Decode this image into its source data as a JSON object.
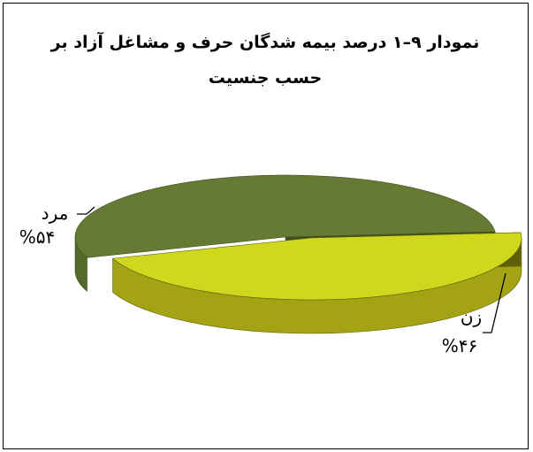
{
  "chart_data": {
    "type": "pie",
    "title": "نمودار ۹–۱ درصد بیمه شدگان حرف و مشاغل آزاد بر حسب جنسیت",
    "title_lines": [
      "نمودار ۹–۱ درصد بیمه شدگان حرف و مشاغل آزاد بر",
      "حسب جنسیت"
    ],
    "slices": [
      {
        "category": "مرد",
        "value": 54,
        "value_label": "%۵۴",
        "color": "#667a33",
        "side_color": "#55692a",
        "dark_color": "#3f5020"
      },
      {
        "category": "زن",
        "value": 46,
        "value_label": "%۴۶",
        "color": "#d0d81e",
        "side_color": "#a3a314",
        "dark_color": "#5f5f08"
      }
    ],
    "legend": "none",
    "style": "3d-exploded"
  }
}
